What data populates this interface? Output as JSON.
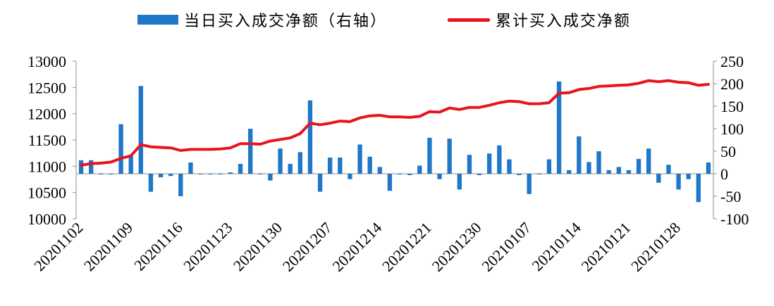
{
  "chart_data": {
    "type": "bar+line",
    "legend": {
      "bar_label": "当日买入成交净额（右轴）",
      "line_label": "累计买入成交净额"
    },
    "colors": {
      "bar": "#1f77c9",
      "line": "#e8141e"
    },
    "left_axis": {
      "min": 10000,
      "max": 13000,
      "ticks": [
        "13000",
        "12500",
        "12000",
        "11500",
        "11000",
        "10500",
        "10000"
      ]
    },
    "right_axis": {
      "min": -100,
      "max": 250,
      "ticks": [
        "250",
        "200",
        "150",
        "100",
        "50",
        "0",
        "-50",
        "-100"
      ]
    },
    "x_tick_labels": [
      "20201102",
      "20201109",
      "20201116",
      "20201123",
      "20201130",
      "20201207",
      "20201214",
      "20201221",
      "20201230",
      "20210107",
      "20210114",
      "20210121",
      "20210128"
    ],
    "x_tick_index": [
      0,
      5,
      10,
      15,
      20,
      25,
      30,
      35,
      40,
      45,
      50,
      55,
      60
    ],
    "bar_values": [
      30,
      30,
      0,
      0,
      110,
      40,
      195,
      -40,
      -8,
      -5,
      -50,
      25,
      0,
      0,
      0,
      3,
      22,
      100,
      0,
      -15,
      56,
      22,
      48,
      163,
      -40,
      36,
      36,
      -12,
      65,
      38,
      15,
      -38,
      0,
      -3,
      18,
      80,
      -12,
      78,
      -35,
      42,
      -3,
      45,
      63,
      32,
      -3,
      -45,
      0,
      32,
      205,
      8,
      83,
      26,
      50,
      8,
      15,
      8,
      33,
      56,
      -20,
      20,
      -35,
      -12,
      -63,
      25
    ],
    "line_values": [
      11020,
      11050,
      11060,
      11080,
      11150,
      11200,
      11410,
      11370,
      11360,
      11350,
      11300,
      11320,
      11320,
      11320,
      11330,
      11350,
      11430,
      11430,
      11420,
      11480,
      11510,
      11540,
      11620,
      11820,
      11790,
      11820,
      11860,
      11850,
      11920,
      11960,
      11970,
      11940,
      11940,
      11930,
      11950,
      12040,
      12030,
      12110,
      12080,
      12120,
      12120,
      12160,
      12210,
      12240,
      12230,
      12190,
      12190,
      12210,
      12390,
      12400,
      12460,
      12480,
      12520,
      12530,
      12540,
      12550,
      12580,
      12630,
      12610,
      12630,
      12600,
      12590,
      12540,
      12560
    ]
  }
}
